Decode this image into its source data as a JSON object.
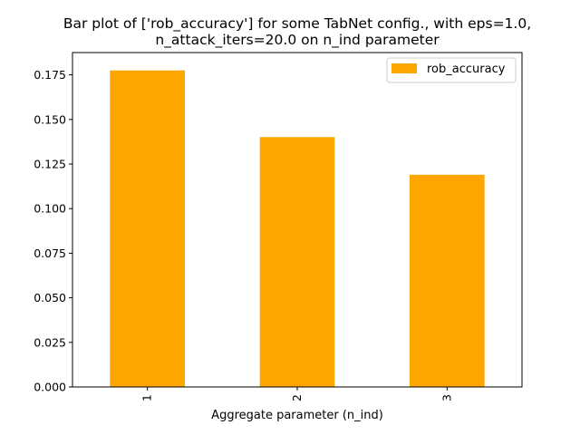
{
  "chart_data": {
    "type": "bar",
    "title": "Bar plot of ['rob_accuracy'] for some TabNet config., with eps=1.0,",
    "subtitle": "n_attack_iters=20.0 on n_ind parameter",
    "xlabel": "Aggregate parameter (n_ind)",
    "ylabel": "",
    "categories": [
      "1",
      "2",
      "3"
    ],
    "series": [
      {
        "name": "rob_accuracy",
        "values": [
          0.1775,
          0.1401,
          0.119
        ],
        "color": "#ffa500"
      }
    ],
    "ylim": [
      0,
      0.1875
    ],
    "yticks": [
      0.0,
      0.025,
      0.05,
      0.075,
      0.1,
      0.125,
      0.15,
      0.175
    ],
    "ytick_labels": [
      "0.000",
      "0.025",
      "0.050",
      "0.075",
      "0.100",
      "0.125",
      "0.150",
      "0.175"
    ],
    "xtick_rotation": "vertical",
    "grid": false,
    "legend": {
      "placement": "top-right",
      "entries": [
        "rob_accuracy"
      ]
    }
  }
}
